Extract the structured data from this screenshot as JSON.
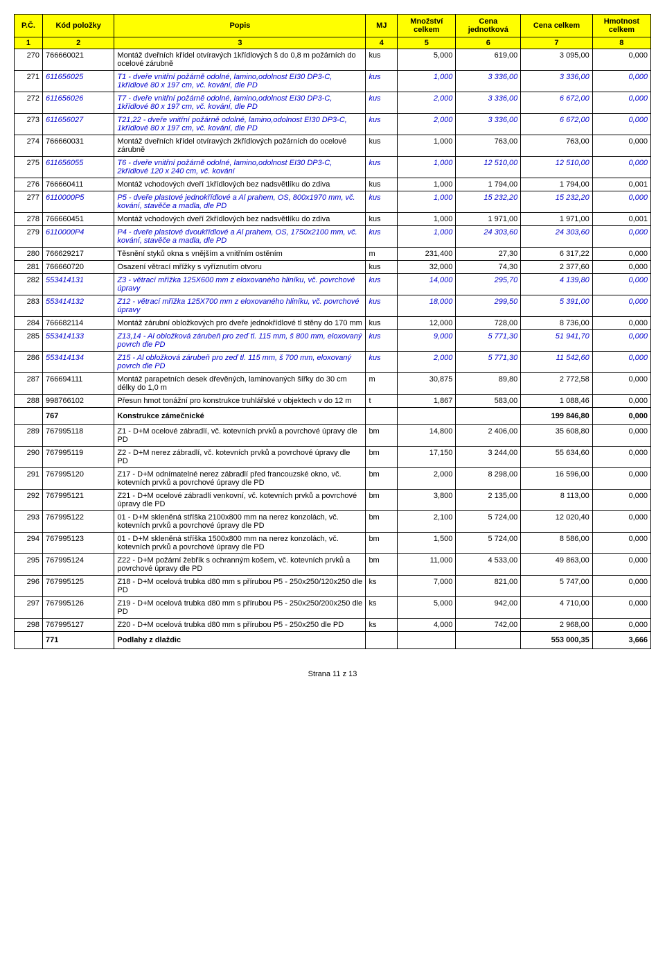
{
  "header": {
    "pc": "P.Č.",
    "kod": "Kód položky",
    "popis": "Popis",
    "mj": "MJ",
    "mnozstvi": "Množství celkem",
    "cena_j": "Cena jednotková",
    "cena_c": "Cena celkem",
    "hmotnost": "Hmotnost celkem",
    "n1": "1",
    "n2": "2",
    "n3": "3",
    "n4": "4",
    "n5": "5",
    "n6": "6",
    "n7": "7",
    "n8": "8"
  },
  "rows": [
    {
      "n": "270",
      "code": "766660021",
      "desc": "Montáž dveřních křídel otvíravých 1křídlových š do 0,8 m požárních do ocelové zárubně",
      "mj": "kus",
      "qty": "5,000",
      "unit": "619,00",
      "total": "3 095,00",
      "mass": "0,000",
      "blue": false
    },
    {
      "n": "271",
      "code": "611656025",
      "desc": "T1 - dveře vnitřní požárně odolné, lamino,odolnost EI30 DP3-C, 1křídlové 80 x 197 cm, vč. kování, dle PD",
      "mj": "kus",
      "qty": "1,000",
      "unit": "3 336,00",
      "total": "3 336,00",
      "mass": "0,000",
      "blue": true
    },
    {
      "n": "272",
      "code": "611656026",
      "desc": "T7 - dveře vnitřní požárně odolné, lamino,odolnost EI30 DP3-C, 1křídlové 80 x 197 cm, vč. kování, dle PD",
      "mj": "kus",
      "qty": "2,000",
      "unit": "3 336,00",
      "total": "6 672,00",
      "mass": "0,000",
      "blue": true
    },
    {
      "n": "273",
      "code": "611656027",
      "desc": "T21,22 - dveře vnitřní požárně odolné, lamino,odolnost EI30 DP3-C, 1křídlové 80 x 197 cm, vč. kování, dle PD",
      "mj": "kus",
      "qty": "2,000",
      "unit": "3 336,00",
      "total": "6 672,00",
      "mass": "0,000",
      "blue": true
    },
    {
      "n": "274",
      "code": "766660031",
      "desc": "Montáž dveřních křídel otvíravých 2křídlových požárních do ocelové zárubně",
      "mj": "kus",
      "qty": "1,000",
      "unit": "763,00",
      "total": "763,00",
      "mass": "0,000",
      "blue": false
    },
    {
      "n": "275",
      "code": "611656055",
      "desc": "T6 - dveře vnitřní požárně odolné, lamino,odolnost EI30 DP3-C, 2křídlové 120 x 240 cm, vč. kování",
      "mj": "kus",
      "qty": "1,000",
      "unit": "12 510,00",
      "total": "12 510,00",
      "mass": "0,000",
      "blue": true
    },
    {
      "n": "276",
      "code": "766660411",
      "desc": "Montáž vchodových dveří 1křídlových bez nadsvětlíku do zdiva",
      "mj": "kus",
      "qty": "1,000",
      "unit": "1 794,00",
      "total": "1 794,00",
      "mass": "0,001",
      "blue": false
    },
    {
      "n": "277",
      "code": "6110000P5",
      "desc": "P5 - dveře plastové jednokřídlové a Al prahem, OS, 800x1970 mm, vč. kování, stavěče a madla, dle PD",
      "mj": "kus",
      "qty": "1,000",
      "unit": "15 232,20",
      "total": "15 232,20",
      "mass": "0,000",
      "blue": true
    },
    {
      "n": "278",
      "code": "766660451",
      "desc": "Montáž vchodových dveří 2křídlových bez nadsvětlíku do zdiva",
      "mj": "kus",
      "qty": "1,000",
      "unit": "1 971,00",
      "total": "1 971,00",
      "mass": "0,001",
      "blue": false
    },
    {
      "n": "279",
      "code": "6110000P4",
      "desc": "P4 - dveře plastové dvoukřídlové a Al prahem, OS, 1750x2100 mm, vč. kování, stavěče a madla, dle PD",
      "mj": "kus",
      "qty": "1,000",
      "unit": "24 303,60",
      "total": "24 303,60",
      "mass": "0,000",
      "blue": true
    },
    {
      "n": "280",
      "code": "766629217",
      "desc": "Těsnění styků okna s vnějším a vnitřním ostěním",
      "mj": "m",
      "qty": "231,400",
      "unit": "27,30",
      "total": "6 317,22",
      "mass": "0,000",
      "blue": false
    },
    {
      "n": "281",
      "code": "766660720",
      "desc": "Osazení větrací mřížky s vyříznutím otvoru",
      "mj": "kus",
      "qty": "32,000",
      "unit": "74,30",
      "total": "2 377,60",
      "mass": "0,000",
      "blue": false
    },
    {
      "n": "282",
      "code": "553414131",
      "desc": "Z3 - větrací mřížka 125X600 mm z eloxovaného hliníku, vč. povrchové úpravy",
      "mj": "kus",
      "qty": "14,000",
      "unit": "295,70",
      "total": "4 139,80",
      "mass": "0,000",
      "blue": true
    },
    {
      "n": "283",
      "code": "553414132",
      "desc": "Z12 - větrací mřížka 125X700 mm z eloxovaného hliníku, vč. povrchové úpravy",
      "mj": "kus",
      "qty": "18,000",
      "unit": "299,50",
      "total": "5 391,00",
      "mass": "0,000",
      "blue": true
    },
    {
      "n": "284",
      "code": "766682114",
      "desc": "Montáž zárubní obložkových pro dveře jednokřídlové tl stěny do 170 mm",
      "mj": "kus",
      "qty": "12,000",
      "unit": "728,00",
      "total": "8 736,00",
      "mass": "0,000",
      "blue": false
    },
    {
      "n": "285",
      "code": "553414133",
      "desc": "Z13,14 - Al obložková zárubeň pro zeď tl. 115 mm, š 800 mm, eloxovaný povrch dle PD",
      "mj": "kus",
      "qty": "9,000",
      "unit": "5 771,30",
      "total": "51 941,70",
      "mass": "0,000",
      "blue": true
    },
    {
      "n": "286",
      "code": "553414134",
      "desc": "Z15 - Al obložková zárubeň pro zeď tl. 115 mm, š 700 mm, eloxovaný povrch dle PD",
      "mj": "kus",
      "qty": "2,000",
      "unit": "5 771,30",
      "total": "11 542,60",
      "mass": "0,000",
      "blue": true
    },
    {
      "n": "287",
      "code": "766694111",
      "desc": "Montáž parapetních desek dřevěných, laminovaných šířky do 30 cm délky do 1,0 m",
      "mj": "m",
      "qty": "30,875",
      "unit": "89,80",
      "total": "2 772,58",
      "mass": "0,000",
      "blue": false
    },
    {
      "n": "288",
      "code": "998766102",
      "desc": "Přesun hmot tonážní pro konstrukce truhlářské v objektech v do 12 m",
      "mj": "t",
      "qty": "1,867",
      "unit": "583,00",
      "total": "1 088,46",
      "mass": "0,000",
      "blue": false
    }
  ],
  "section1": {
    "code": "767",
    "desc": "Konstrukce zámečnické",
    "total": "199 846,80",
    "mass": "0,000"
  },
  "rows2": [
    {
      "n": "289",
      "code": "767995118",
      "desc": "Z1 - D+M ocelové zábradlí, vč. kotevních prvků a povrchové úpravy dle PD",
      "mj": "bm",
      "qty": "14,800",
      "unit": "2 406,00",
      "total": "35 608,80",
      "mass": "0,000",
      "blue": false
    },
    {
      "n": "290",
      "code": "767995119",
      "desc": "Z2 - D+M nerez zábradlí, vč. kotevních prvků a povrchové úpravy dle PD",
      "mj": "bm",
      "qty": "17,150",
      "unit": "3 244,00",
      "total": "55 634,60",
      "mass": "0,000",
      "blue": false
    },
    {
      "n": "291",
      "code": "767995120",
      "desc": "Z17 - D+M odnímatelné nerez zábradlí před francouzské okno, vč. kotevních prvků a povrchové úpravy dle PD",
      "mj": "bm",
      "qty": "2,000",
      "unit": "8 298,00",
      "total": "16 596,00",
      "mass": "0,000",
      "blue": false
    },
    {
      "n": "292",
      "code": "767995121",
      "desc": "Z21 - D+M ocelové zábradlí venkovní, vč. kotevních prvků a povrchové úpravy dle PD",
      "mj": "bm",
      "qty": "3,800",
      "unit": "2 135,00",
      "total": "8 113,00",
      "mass": "0,000",
      "blue": false
    },
    {
      "n": "293",
      "code": "767995122",
      "desc": "01 - D+M skleněná stříška 2100x800 mm na nerez konzolách, vč. kotevních prvků a povrchové úpravy dle PD",
      "mj": "bm",
      "qty": "2,100",
      "unit": "5 724,00",
      "total": "12 020,40",
      "mass": "0,000",
      "blue": false
    },
    {
      "n": "294",
      "code": "767995123",
      "desc": "01 - D+M skleněná stříška 1500x800 mm na nerez konzolách, vč. kotevních prvků a povrchové úpravy dle PD",
      "mj": "bm",
      "qty": "1,500",
      "unit": "5 724,00",
      "total": "8 586,00",
      "mass": "0,000",
      "blue": false
    },
    {
      "n": "295",
      "code": "767995124",
      "desc": "Z22 - D+M požární žebřík s ochranným košem, vč. kotevních prvků a povrchové úpravy dle PD",
      "mj": "bm",
      "qty": "11,000",
      "unit": "4 533,00",
      "total": "49 863,00",
      "mass": "0,000",
      "blue": false
    },
    {
      "n": "296",
      "code": "767995125",
      "desc": "Z18 - D+M ocelová trubka d80 mm s přírubou P5 - 250x250/120x250 dle PD",
      "mj": "ks",
      "qty": "7,000",
      "unit": "821,00",
      "total": "5 747,00",
      "mass": "0,000",
      "blue": false
    },
    {
      "n": "297",
      "code": "767995126",
      "desc": "Z19 - D+M ocelová trubka d80 mm s přírubou P5 - 250x250/200x250 dle PD",
      "mj": "ks",
      "qty": "5,000",
      "unit": "942,00",
      "total": "4 710,00",
      "mass": "0,000",
      "blue": false
    },
    {
      "n": "298",
      "code": "767995127",
      "desc": "Z20 - D+M ocelová trubka d80 mm s přírubou P5 - 250x250 dle PD",
      "mj": "ks",
      "qty": "4,000",
      "unit": "742,00",
      "total": "2 968,00",
      "mass": "0,000",
      "blue": false
    }
  ],
  "section2": {
    "code": "771",
    "desc": "Podlahy z dlaždic",
    "total": "553 000,35",
    "mass": "3,666"
  },
  "footer": "Strana 11  z 13"
}
